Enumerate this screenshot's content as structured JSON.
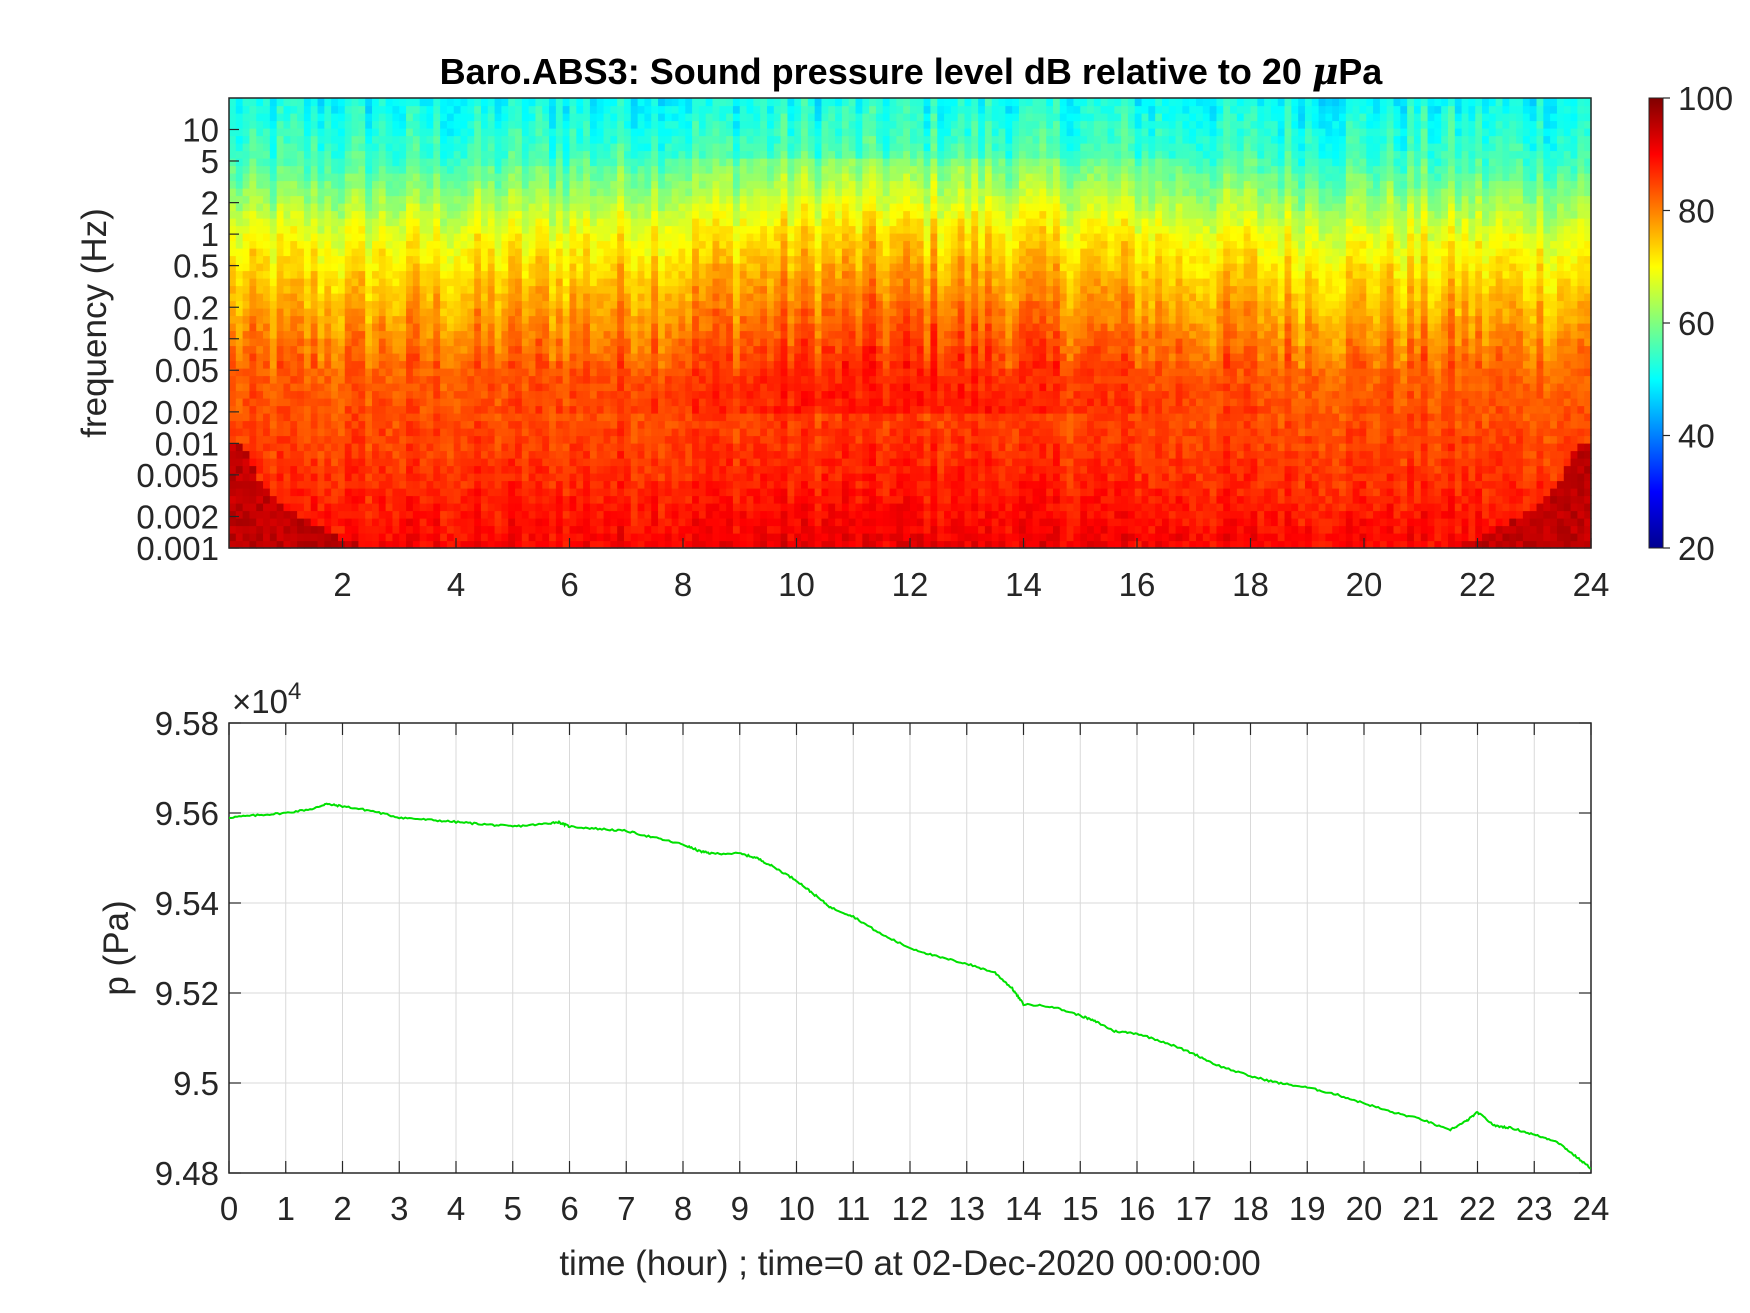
{
  "top_title_main": "Baro.ABS3: Sound pressure level dB relative to 20 ",
  "top_title_mu": "μ",
  "top_title_unit": "Pa",
  "top_ylabel": "frequency (Hz)",
  "bottom_ylabel": "p (Pa)",
  "bottom_xlabel": "time (hour) ; time=0 at 02-Dec-2020 00:00:00",
  "bottom_exponent_base": "×10",
  "bottom_exponent_power": "4",
  "colors": {
    "line": "#00e000",
    "grid": "#d9d9d9",
    "axis": "#262626"
  },
  "chart_data": [
    {
      "type": "heatmap",
      "title": "Baro.ABS3: Sound pressure level dB relative to 20 μPa",
      "xlabel": "",
      "ylabel": "frequency (Hz)",
      "x_range": [
        0,
        24
      ],
      "x_ticks": [
        "2",
        "4",
        "6",
        "8",
        "10",
        "12",
        "14",
        "16",
        "18",
        "20",
        "22",
        "24"
      ],
      "y_scale": "log",
      "y_range": [
        0.001,
        20
      ],
      "y_ticks": [
        "0.001",
        "0.002",
        "0.005",
        "0.01",
        "0.02",
        "0.05",
        "0.1",
        "0.2",
        "0.5",
        "1",
        "2",
        "5",
        "10"
      ],
      "colormap": "jet",
      "colorbar_range": [
        20,
        100
      ],
      "colorbar_ticks": [
        "20",
        "40",
        "60",
        "80",
        "100"
      ],
      "level_by_frequency": [
        {
          "freq": 0.001,
          "db": 90
        },
        {
          "freq": 0.005,
          "db": 86
        },
        {
          "freq": 0.05,
          "db": 82
        },
        {
          "freq": 0.2,
          "db": 76
        },
        {
          "freq": 1,
          "db": 68
        },
        {
          "freq": 5,
          "db": 55
        },
        {
          "freq": 20,
          "db": 50
        }
      ],
      "grid": false
    },
    {
      "type": "line",
      "title": "",
      "xlabel": "time (hour) ; time=0 at 02-Dec-2020 00:00:00",
      "ylabel": "p (Pa)",
      "x_range": [
        0,
        24
      ],
      "x_ticks": [
        "0",
        "1",
        "2",
        "3",
        "4",
        "5",
        "6",
        "7",
        "8",
        "9",
        "10",
        "11",
        "12",
        "13",
        "14",
        "15",
        "16",
        "17",
        "18",
        "19",
        "20",
        "21",
        "22",
        "23",
        "24"
      ],
      "ylim": [
        94800,
        95800
      ],
      "y_ticks": [
        "9.48",
        "9.5",
        "9.52",
        "9.54",
        "9.56",
        "9.58"
      ],
      "y_exponent": 4,
      "grid": true,
      "series": [
        {
          "color": "#00e000",
          "x": [
            0,
            0.5,
            1,
            1.5,
            1.7,
            2,
            2.5,
            3,
            3.5,
            4,
            4.5,
            5,
            5.5,
            5.8,
            6,
            6.5,
            7,
            7.5,
            8,
            8.3,
            8.5,
            9,
            9.3,
            9.6,
            10,
            10.3,
            10.6,
            11,
            11.5,
            12,
            12.5,
            13,
            13.5,
            13.8,
            14,
            14.5,
            15,
            15.3,
            15.6,
            16,
            16.5,
            17,
            17.4,
            18,
            18.5,
            19,
            19.5,
            20,
            20.5,
            21,
            21.5,
            21.8,
            22,
            22.3,
            22.6,
            23,
            23.4,
            23.7,
            24
          ],
          "y": [
            95590,
            95595,
            95600,
            95610,
            95620,
            95615,
            95605,
            95590,
            95585,
            95580,
            95575,
            95570,
            95575,
            95580,
            95570,
            95565,
            95560,
            95545,
            95530,
            95515,
            95510,
            95510,
            95500,
            95480,
            95450,
            95420,
            95390,
            95370,
            95330,
            95300,
            95280,
            95265,
            95245,
            95210,
            95175,
            95170,
            95150,
            95135,
            95115,
            95110,
            95090,
            95065,
            95040,
            95015,
            95000,
            94990,
            94975,
            94955,
            94935,
            94920,
            94895,
            94915,
            94935,
            94905,
            94900,
            94885,
            94870,
            94840,
            94810
          ]
        }
      ]
    }
  ]
}
